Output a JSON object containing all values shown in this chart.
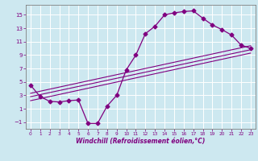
{
  "xlabel": "Windchill (Refroidissement éolien,°C)",
  "bg_color": "#cde8f0",
  "line_color": "#800080",
  "grid_color": "#ffffff",
  "spine_color": "#808080",
  "xlim": [
    -0.5,
    23.5
  ],
  "ylim": [
    -2.0,
    16.5
  ],
  "xticks": [
    0,
    1,
    2,
    3,
    4,
    5,
    6,
    7,
    8,
    9,
    10,
    11,
    12,
    13,
    14,
    15,
    16,
    17,
    18,
    19,
    20,
    21,
    22,
    23
  ],
  "yticks": [
    -1,
    1,
    3,
    5,
    7,
    9,
    11,
    13,
    15
  ],
  "main_x": [
    0,
    1,
    2,
    3,
    4,
    5,
    6,
    7,
    8,
    9,
    10,
    11,
    12,
    13,
    14,
    15,
    16,
    17,
    18,
    19,
    20,
    21,
    22,
    23
  ],
  "main_y": [
    4.5,
    2.8,
    2.1,
    2.0,
    2.2,
    2.3,
    -1.2,
    -1.2,
    1.4,
    3.0,
    6.8,
    9.0,
    12.2,
    13.3,
    15.0,
    15.3,
    15.5,
    15.6,
    14.5,
    13.5,
    12.8,
    12.0,
    10.5,
    10.0
  ],
  "diag_lines": [
    {
      "x": [
        0,
        23
      ],
      "y": [
        2.2,
        9.3
      ]
    },
    {
      "x": [
        0,
        23
      ],
      "y": [
        2.8,
        9.8
      ]
    },
    {
      "x": [
        0,
        23
      ],
      "y": [
        3.3,
        10.4
      ]
    }
  ],
  "xlabel_fontsize": 5.5,
  "tick_fontsize": 5.0
}
